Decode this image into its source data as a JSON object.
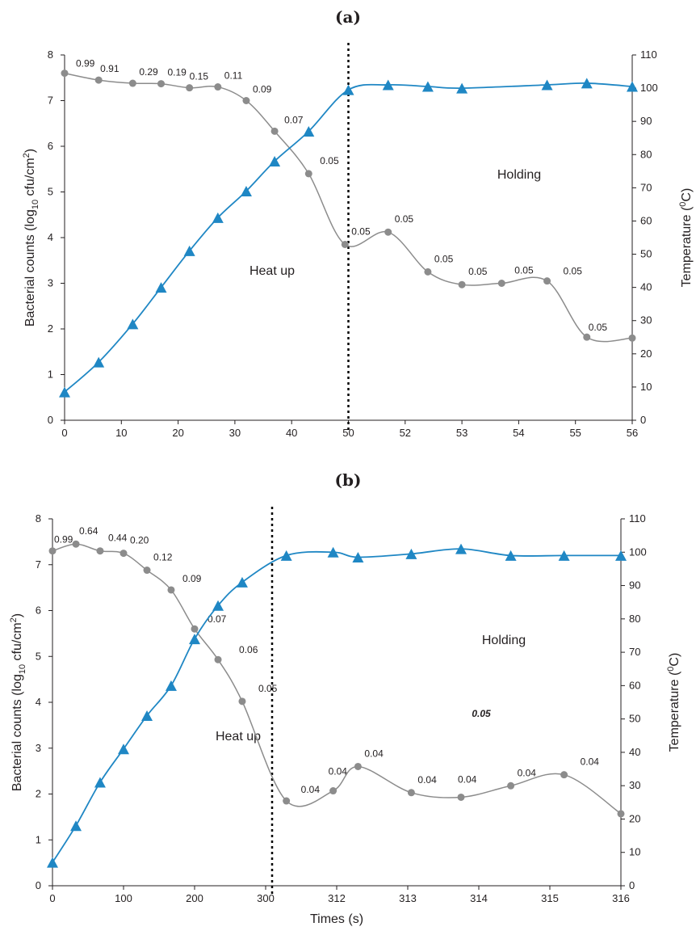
{
  "chart_data": [
    {
      "type": "line",
      "title": "(a)",
      "xlabel": "",
      "ylabel": "Bacterial counts (log10 cfu/cm2)",
      "ylabel_parts": {
        "pre": "Bacterial counts (log",
        "sub": "10",
        "mid": " cfu/cm",
        "sup": "2",
        "post": ")"
      },
      "y2label": "Temperature (0C)",
      "y2label_parts": {
        "pre": "Temperature (",
        "sup": "0",
        "post": "C)"
      },
      "x_ticks": [
        "0",
        "10",
        "20",
        "30",
        "40",
        "50",
        "52",
        "53",
        "54",
        "55",
        "56"
      ],
      "ylim": [
        0,
        8
      ],
      "y_ticks": [
        "0",
        "1",
        "2",
        "3",
        "4",
        "5",
        "6",
        "7",
        "8"
      ],
      "y2lim": [
        0,
        110
      ],
      "y2_ticks": [
        "0",
        "10",
        "20",
        "30",
        "40",
        "50",
        "60",
        "70",
        "80",
        "90",
        "100",
        "110"
      ],
      "divider_tick_index": 5,
      "regions": {
        "left": "Heat up",
        "right": "Holding"
      },
      "grid": false,
      "legend": "none",
      "series": [
        {
          "axis": "left",
          "marker": "circle",
          "color": "#8c8c8c",
          "x": [
            0,
            6,
            12,
            17,
            22,
            27,
            32,
            37,
            43,
            49.4,
            51.4,
            52.4,
            53,
            53.7,
            54.5,
            55.2,
            56
          ],
          "values": [
            7.6,
            7.45,
            7.38,
            7.37,
            7.28,
            7.3,
            7.0,
            6.33,
            5.4,
            3.85,
            4.12,
            3.25,
            2.97,
            3.0,
            3.05,
            1.82,
            1.8
          ],
          "labels": [
            "0.99",
            "0.91",
            "0.29",
            "0.19",
            "0.15",
            "0.11",
            "0.09",
            "0.07",
            "0.05",
            "0.05",
            "0.05",
            "0.05",
            "0.05",
            "0.05",
            "0.05",
            "0.05",
            ""
          ]
        },
        {
          "axis": "right",
          "marker": "triangle",
          "color": "#1f87c4",
          "x": [
            0,
            6,
            12,
            17,
            22,
            27,
            32,
            37,
            43,
            50,
            51.4,
            52.4,
            53,
            54.5,
            55.2,
            56
          ],
          "values": [
            8.5,
            17.5,
            29,
            40,
            51,
            61,
            69,
            78,
            87,
            99.5,
            101,
            100.5,
            100,
            101,
            101.5,
            100.5
          ]
        }
      ]
    },
    {
      "type": "line",
      "title": "(b)",
      "xlabel": "Times (s)",
      "ylabel": "Bacterial counts (log10 cfu/cm2)",
      "ylabel_parts": {
        "pre": "Bacterial counts (log",
        "sub": "10",
        "mid": " cfu/cm",
        "sup": "2",
        "post": ")"
      },
      "y2label": "Temperature (0C)",
      "y2label_parts": {
        "pre": "Temperature (",
        "sup": "0",
        "post": "C)"
      },
      "x_ticks": [
        "0",
        "100",
        "200",
        "300",
        "312",
        "313",
        "314",
        "315",
        "316"
      ],
      "ylim": [
        0,
        8
      ],
      "y_ticks": [
        "0",
        "1",
        "2",
        "3",
        "4",
        "5",
        "6",
        "7",
        "8"
      ],
      "y2lim": [
        0,
        110
      ],
      "y2_ticks": [
        "0",
        "10",
        "20",
        "30",
        "40",
        "50",
        "60",
        "70",
        "80",
        "90",
        "100",
        "110"
      ],
      "divider_tick_index": 3,
      "regions": {
        "left": "Heat up",
        "right": "Holding"
      },
      "grid": false,
      "legend": "none",
      "extra_annotation": "0.05",
      "series": [
        {
          "axis": "left",
          "marker": "circle",
          "color": "#8c8c8c",
          "x": [
            0,
            33,
            67,
            100,
            133,
            167,
            200,
            233,
            267,
            303.5,
            311.4,
            312.3,
            313.05,
            313.75,
            314.45,
            315.2,
            316
          ],
          "values": [
            7.3,
            7.45,
            7.3,
            7.25,
            6.88,
            6.45,
            5.6,
            4.93,
            4.02,
            1.85,
            2.07,
            2.6,
            2.03,
            1.93,
            2.18,
            2.42,
            1.57
          ],
          "labels": [
            "0.99",
            "0.64",
            "0.44",
            "0.20",
            "0.12",
            "0.09",
            "0.07",
            "0.06",
            "0.05",
            "0.04",
            "0.04",
            "0.04",
            "0.04",
            "0.04",
            "0.04",
            "0.04",
            ""
          ]
        },
        {
          "axis": "right",
          "marker": "triangle",
          "color": "#1f87c4",
          "x": [
            0,
            33,
            67,
            100,
            133,
            167,
            200,
            233,
            267,
            303.5,
            311.4,
            312.3,
            313.05,
            313.75,
            314.45,
            315.2,
            316
          ],
          "values": [
            7,
            18,
            31,
            41,
            51,
            60,
            74,
            84,
            91,
            99,
            100,
            98.5,
            99.5,
            101,
            99,
            99,
            99
          ]
        }
      ]
    }
  ]
}
